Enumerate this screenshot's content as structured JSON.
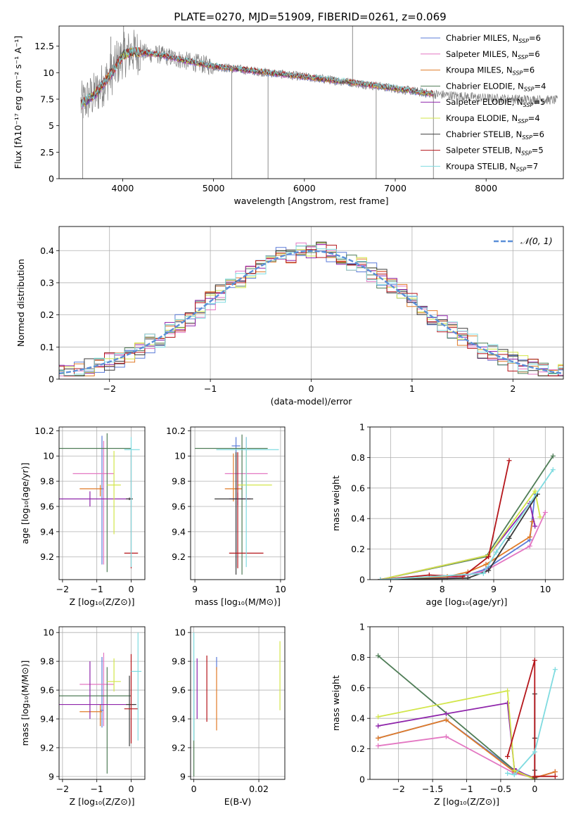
{
  "figure": {
    "title": "PLATE=0270, MJD=51909, FIBERID=0261, z=0.069"
  },
  "series": [
    {
      "name": "Chabrier MILES, N",
      "sub": "SSP",
      "suffix": "=6",
      "color": "#5b7bd8"
    },
    {
      "name": "Salpeter MILES, N",
      "sub": "SSP",
      "suffix": "=6",
      "color": "#e377c2"
    },
    {
      "name": "Kroupa MILES, N",
      "sub": "SSP",
      "suffix": "=6",
      "color": "#e07b28"
    },
    {
      "name": "Chabrier ELODIE, N",
      "sub": "SSP",
      "suffix": "=4",
      "color": "#4f7d57"
    },
    {
      "name": "Salpeter ELODIE, N",
      "sub": "SSP",
      "suffix": "=5",
      "color": "#8e24aa"
    },
    {
      "name": "Kroupa ELODIE, N",
      "sub": "SSP",
      "suffix": "=4",
      "color": "#d2e64a"
    },
    {
      "name": "Chabrier STELIB, N",
      "sub": "SSP",
      "suffix": "=6",
      "color": "#3a3a3a"
    },
    {
      "name": "Salpeter STELIB, N",
      "sub": "SSP",
      "suffix": "=5",
      "color": "#b5161b"
    },
    {
      "name": "Kroupa STELIB, N",
      "sub": "SSP",
      "suffix": "=7",
      "color": "#7fdbe0"
    }
  ],
  "chart_data": [
    {
      "id": "spectrum",
      "type": "line",
      "xlabel": "wavelength [Angstrom, rest frame]",
      "ylabel": "Flux [fλ10⁻¹⁷ erg cm⁻² s⁻¹ A⁻¹]",
      "xlim": [
        3300,
        8850
      ],
      "ylim": [
        0,
        14.4
      ],
      "xticks": [
        4000,
        5000,
        6000,
        7000,
        8000
      ],
      "yticks": [
        0.0,
        2.5,
        5.0,
        7.5,
        10.0,
        12.5
      ],
      "data_color": "#808080",
      "data_range": [
        3540,
        8790
      ],
      "model_range": [
        3540,
        7420
      ],
      "continuum": [
        [
          3540,
          7.0
        ],
        [
          3700,
          8.0
        ],
        [
          3900,
          10.2
        ],
        [
          4000,
          11.6
        ],
        [
          4100,
          12.0
        ],
        [
          4400,
          11.7
        ],
        [
          4700,
          11.1
        ],
        [
          5000,
          10.6
        ],
        [
          5500,
          10.1
        ],
        [
          6000,
          9.6
        ],
        [
          6500,
          9.1
        ],
        [
          7000,
          8.5
        ],
        [
          7400,
          8.0
        ],
        [
          8000,
          7.6
        ],
        [
          8790,
          7.4
        ]
      ],
      "spikes": [
        [
          3560,
          0.0
        ],
        [
          3870,
          13.4
        ],
        [
          3935,
          13.0
        ],
        [
          4010,
          14.4
        ],
        [
          5200,
          0.0
        ],
        [
          5600,
          0.0
        ],
        [
          6530,
          14.4
        ],
        [
          6790,
          0.0
        ],
        [
          7420,
          0.0
        ]
      ],
      "legend": "top-right"
    },
    {
      "id": "residuals",
      "type": "step",
      "xlabel": "(data-model)/error",
      "ylabel": "Normed distribution",
      "xlim": [
        -2.5,
        2.5
      ],
      "ylim": [
        0.0,
        0.475
      ],
      "xticks": [
        -2,
        -1,
        0,
        1,
        2
      ],
      "yticks": [
        0.0,
        0.1,
        0.2,
        0.3,
        0.4
      ],
      "grid": true,
      "bin_width": 0.1,
      "reference": {
        "label": "𝒩(0, 1)",
        "color": "#5b8fd8",
        "mu": 0,
        "sigma": 1
      },
      "legend": "top-right"
    },
    {
      "id": "age_vs_Z",
      "type": "errorbar",
      "xlabel": "Z [log₁₀(Z/Z⊙)]",
      "ylabel": "age  [log₁₀(age/yr)]",
      "xlim": [
        -2.1,
        0.4
      ],
      "ylim": [
        9.02,
        10.23
      ],
      "xticks": [
        -2,
        -1,
        0
      ],
      "yticks": [
        9.2,
        9.4,
        9.6,
        9.8,
        10.0,
        10.2
      ],
      "grid": true,
      "points": [
        {
          "series": 0,
          "x": -0.85,
          "y": 9.74,
          "xerr": [
            0.05,
            0.05
          ],
          "yerr": [
            0.6,
            0.42
          ]
        },
        {
          "series": 1,
          "x": -0.8,
          "y": 9.86,
          "xerr": [
            0.9,
            0.3
          ],
          "yerr": [
            0.72,
            0.26
          ]
        },
        {
          "series": 2,
          "x": -0.9,
          "y": 9.74,
          "xerr": [
            0.6,
            0.05
          ],
          "yerr": [
            0.06,
            0.03
          ]
        },
        {
          "series": 3,
          "x": -0.7,
          "y": 10.06,
          "xerr": [
            1.4,
            0.7
          ],
          "yerr": [
            0.98,
            0.12
          ]
        },
        {
          "series": 4,
          "x": -1.2,
          "y": 9.66,
          "xerr": [
            0.9,
            1.2
          ],
          "yerr": [
            0.06,
            0.06
          ]
        },
        {
          "series": 5,
          "x": -0.5,
          "y": 9.77,
          "xerr": [
            0.2,
            0.2
          ],
          "yerr": [
            0.39,
            0.27
          ]
        },
        {
          "series": 6,
          "x": -0.05,
          "y": 9.66,
          "xerr": [
            0.1,
            0.1
          ],
          "yerr": [
            0.01,
            0.01
          ]
        },
        {
          "series": 7,
          "x": -0.0,
          "y": 9.23,
          "xerr": [
            0.2,
            0.2
          ],
          "yerr": [
            0.12,
            0.81
          ]
        },
        {
          "series": 8,
          "x": 0.0,
          "y": 10.05,
          "xerr": [
            0.2,
            0.25
          ],
          "yerr": [
            0.93,
            0.1
          ]
        }
      ]
    },
    {
      "id": "age_vs_mass",
      "type": "errorbar",
      "xlabel": "mass [log₁₀(M/M⊙)]",
      "ylabel": "",
      "xlim": [
        8.95,
        10.05
      ],
      "ylim": [
        9.02,
        10.23
      ],
      "xticks": [
        9,
        10
      ],
      "yticks": [
        9.2,
        9.4,
        9.6,
        9.8,
        10.0,
        10.2
      ],
      "grid": true,
      "points": [
        {
          "series": 0,
          "x": 9.48,
          "y": 10.08,
          "xerr": [
            0.05,
            0.05
          ],
          "yerr": [
            0.96,
            0.07
          ]
        },
        {
          "series": 1,
          "x": 9.6,
          "y": 9.86,
          "xerr": [
            0.25,
            0.25
          ],
          "yerr": [
            0.22,
            0.29
          ]
        },
        {
          "series": 2,
          "x": 9.45,
          "y": 9.74,
          "xerr": [
            0.1,
            0.1
          ],
          "yerr": [
            0.1,
            0.28
          ]
        },
        {
          "series": 3,
          "x": 9.55,
          "y": 10.06,
          "xerr": [
            0.55,
            0.3
          ],
          "yerr": [
            1.0,
            0.11
          ]
        },
        {
          "series": 4,
          "x": 9.5,
          "y": 9.66,
          "xerr": [
            0.1,
            0.15
          ],
          "yerr": [
            0.05,
            0.05
          ]
        },
        {
          "series": 5,
          "x": 9.6,
          "y": 9.77,
          "xerr": [
            0.1,
            0.3
          ],
          "yerr": [
            0.07,
            0.27
          ]
        },
        {
          "series": 6,
          "x": 9.48,
          "y": 9.66,
          "xerr": [
            0.25,
            0.2
          ],
          "yerr": [
            0.6,
            0.37
          ]
        },
        {
          "series": 7,
          "x": 9.5,
          "y": 9.23,
          "xerr": [
            0.1,
            0.3
          ],
          "yerr": [
            0.12,
            0.8
          ]
        },
        {
          "series": 8,
          "x": 9.6,
          "y": 10.05,
          "xerr": [
            0.35,
            0.38
          ],
          "yerr": [
            0.93,
            0.1
          ]
        }
      ]
    },
    {
      "id": "massweight_vs_age",
      "type": "line",
      "xlabel": "age  [log₁₀(age/yr)]",
      "ylabel": "mass weight",
      "xlim": [
        6.6,
        10.35
      ],
      "ylim": [
        0.0,
        1.0
      ],
      "xticks": [
        7,
        8,
        9,
        10
      ],
      "yticks": [
        0.0,
        0.2,
        0.4,
        0.6,
        0.8,
        1.0
      ],
      "grid": true,
      "series": [
        {
          "series": 0,
          "x": [
            6.8,
            8.1,
            8.5,
            8.85,
            9.7,
            9.8
          ],
          "y": [
            0.0,
            0.01,
            0.03,
            0.07,
            0.26,
            0.56
          ]
        },
        {
          "series": 1,
          "x": [
            6.8,
            8.1,
            8.5,
            8.85,
            9.7,
            10.0
          ],
          "y": [
            0.0,
            0.01,
            0.03,
            0.06,
            0.22,
            0.44
          ]
        },
        {
          "series": 2,
          "x": [
            6.8,
            8.1,
            8.5,
            8.85,
            9.7,
            9.75
          ],
          "y": [
            0.0,
            0.02,
            0.05,
            0.1,
            0.28,
            0.38
          ]
        },
        {
          "series": 3,
          "x": [
            6.8,
            8.85,
            10.15
          ],
          "y": [
            0.0,
            0.15,
            0.81
          ]
        },
        {
          "series": 4,
          "x": [
            6.8,
            8.9,
            9.7,
            9.8
          ],
          "y": [
            0.0,
            0.16,
            0.5,
            0.35
          ]
        },
        {
          "series": 5,
          "x": [
            6.8,
            8.9,
            9.8,
            9.9
          ],
          "y": [
            0.0,
            0.16,
            0.58,
            0.41
          ]
        },
        {
          "series": 6,
          "x": [
            6.8,
            8.5,
            8.9,
            9.3,
            9.85
          ],
          "y": [
            0.0,
            0.01,
            0.06,
            0.27,
            0.56
          ]
        },
        {
          "series": 7,
          "x": [
            6.8,
            7.75,
            8.4,
            8.9,
            9.3
          ],
          "y": [
            0.0,
            0.03,
            0.02,
            0.15,
            0.78
          ]
        },
        {
          "series": 8,
          "x": [
            6.8,
            8.8,
            9.05,
            10.15
          ],
          "y": [
            0.0,
            0.04,
            0.18,
            0.72
          ]
        }
      ]
    },
    {
      "id": "mass_vs_Z",
      "type": "errorbar",
      "xlabel": "Z [log₁₀(Z/Z⊙)]",
      "ylabel": "mass [log₁₀(M/M⊙)]",
      "xlim": [
        -2.1,
        0.4
      ],
      "ylim": [
        8.98,
        10.04
      ],
      "xticks": [
        -2,
        -1,
        0
      ],
      "yticks": [
        9.0,
        9.2,
        9.4,
        9.6,
        9.8,
        10.0
      ],
      "grid": true,
      "points": [
        {
          "series": 0,
          "x": -0.85,
          "y": 9.46,
          "xerr": [
            0.05,
            0.05
          ],
          "yerr": [
            0.12,
            0.37
          ]
        },
        {
          "series": 1,
          "x": -0.8,
          "y": 9.64,
          "xerr": [
            0.7,
            0.3
          ],
          "yerr": [
            0.29,
            0.22
          ]
        },
        {
          "series": 2,
          "x": -0.9,
          "y": 9.45,
          "xerr": [
            0.6,
            0.05
          ],
          "yerr": [
            0.1,
            0.05
          ]
        },
        {
          "series": 3,
          "x": -0.7,
          "y": 9.56,
          "xerr": [
            1.4,
            0.7
          ],
          "yerr": [
            0.54,
            0.2
          ]
        },
        {
          "series": 4,
          "x": -1.2,
          "y": 9.5,
          "xerr": [
            0.9,
            1.3
          ],
          "yerr": [
            0.1,
            0.3
          ]
        },
        {
          "series": 5,
          "x": -0.5,
          "y": 9.66,
          "xerr": [
            0.2,
            0.2
          ],
          "yerr": [
            0.07,
            0.16
          ]
        },
        {
          "series": 6,
          "x": -0.05,
          "y": 9.5,
          "xerr": [
            0.1,
            0.2
          ],
          "yerr": [
            0.29,
            0.2
          ]
        },
        {
          "series": 7,
          "x": 0.0,
          "y": 9.47,
          "xerr": [
            0.2,
            0.2
          ],
          "yerr": [
            0.24,
            0.38
          ]
        },
        {
          "series": 8,
          "x": 0.2,
          "y": 9.73,
          "xerr": [
            0.2,
            0.1
          ],
          "yerr": [
            0.48,
            0.27
          ]
        }
      ]
    },
    {
      "id": "mass_vs_EBV",
      "type": "errorbar",
      "xlabel": "E(B-V)",
      "ylabel": "",
      "xlim": [
        -0.001,
        0.028
      ],
      "ylim": [
        8.98,
        10.04
      ],
      "xticks": [
        0.0,
        0.02
      ],
      "yticks": [
        9.0,
        9.2,
        9.4,
        9.6,
        9.8,
        10.0
      ],
      "grid": true,
      "points": [
        {
          "series": 0,
          "x": 0.007,
          "y": 9.8,
          "xerr": [
            0.0,
            0.0
          ],
          "yerr": [
            0.06,
            0.03
          ]
        },
        {
          "series": 2,
          "x": 0.007,
          "y": 9.6,
          "xerr": [
            0.0,
            0.0
          ],
          "yerr": [
            0.28,
            0.16
          ]
        },
        {
          "series": 3,
          "x": 0.0,
          "y": 9.5,
          "xerr": [
            0.0,
            0.0
          ],
          "yerr": [
            0.5,
            0.3
          ]
        },
        {
          "series": 4,
          "x": 0.001,
          "y": 9.6,
          "xerr": [
            0.0,
            0.0
          ],
          "yerr": [
            0.2,
            0.22
          ]
        },
        {
          "series": 5,
          "x": 0.0265,
          "y": 9.7,
          "xerr": [
            0.0,
            0.0
          ],
          "yerr": [
            0.24,
            0.24
          ]
        },
        {
          "series": 7,
          "x": 0.004,
          "y": 9.6,
          "xerr": [
            0.0,
            0.0
          ],
          "yerr": [
            0.22,
            0.24
          ]
        },
        {
          "series": 8,
          "x": 0.0,
          "y": 9.7,
          "xerr": [
            0.0,
            0.0
          ],
          "yerr": [
            0.45,
            0.3
          ]
        }
      ]
    },
    {
      "id": "massweight_vs_Z",
      "type": "line",
      "xlabel": "Z [log₁₀(Z/Z⊙)]",
      "ylabel": "mass weight",
      "xlim": [
        -2.42,
        0.42
      ],
      "ylim": [
        0.0,
        1.0
      ],
      "xticks": [
        -2.0,
        -1.5,
        -1.0,
        -0.5,
        0.0
      ],
      "yticks": [
        0.0,
        0.2,
        0.4,
        0.6,
        0.8,
        1.0
      ],
      "grid": true,
      "series": [
        {
          "series": 0,
          "x": [
            -2.3,
            -1.3,
            -0.3,
            0.0,
            0.3
          ],
          "y": [
            0.27,
            0.39,
            0.06,
            0.01,
            0.05
          ]
        },
        {
          "series": 1,
          "x": [
            -2.3,
            -1.3,
            -0.3,
            0.0,
            0.3
          ],
          "y": [
            0.22,
            0.28,
            0.04,
            0.01,
            0.05
          ]
        },
        {
          "series": 2,
          "x": [
            -2.3,
            -1.3,
            -0.3,
            0.0,
            0.3
          ],
          "y": [
            0.27,
            0.39,
            0.05,
            0.01,
            0.05
          ]
        },
        {
          "series": 3,
          "x": [
            -2.3,
            -0.3,
            0.0
          ],
          "y": [
            0.81,
            0.06,
            0.0
          ]
        },
        {
          "series": 4,
          "x": [
            -2.3,
            -1.3,
            -0.4,
            -0.3,
            0.0
          ],
          "y": [
            0.35,
            0.43,
            0.5,
            0.07,
            0.0
          ]
        },
        {
          "series": 5,
          "x": [
            -2.3,
            -0.4,
            -0.3,
            0.0
          ],
          "y": [
            0.41,
            0.58,
            0.06,
            0.0
          ]
        },
        {
          "series": 6,
          "x": [
            0.0,
            0.0,
            0.0,
            0.0
          ],
          "y": [
            0.56,
            0.27,
            0.06,
            0.01
          ]
        },
        {
          "series": 7,
          "x": [
            -0.4,
            0.0,
            0.0,
            0.3
          ],
          "y": [
            0.15,
            0.78,
            0.02,
            0.02
          ]
        },
        {
          "series": 8,
          "x": [
            -0.4,
            -0.3,
            0.0,
            0.3
          ],
          "y": [
            0.04,
            0.03,
            0.18,
            0.72
          ]
        }
      ]
    }
  ]
}
